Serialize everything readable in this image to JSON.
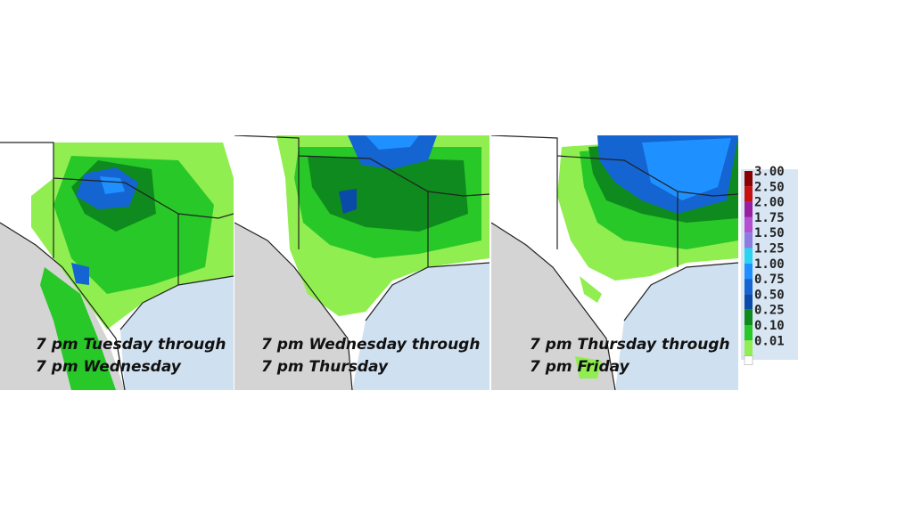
{
  "panels": [
    {
      "caption": [
        "7 pm Tuesday through",
        "7 pm Wednesday"
      ]
    },
    {
      "caption": [
        "7 pm Wednesday through",
        "7 pm Thursday"
      ]
    },
    {
      "caption": [
        "7 pm Thursday through",
        "7 pm Friday"
      ]
    }
  ],
  "legend": {
    "items": [
      {
        "label": "3.00",
        "color": "#8b0000"
      },
      {
        "label": "2.50",
        "color": "#c81010"
      },
      {
        "label": "2.00",
        "color": "#9a1fa0"
      },
      {
        "label": "1.75",
        "color": "#b34fd0"
      },
      {
        "label": "1.50",
        "color": "#8c7ce0"
      },
      {
        "label": "1.25",
        "color": "#2ad4f0"
      },
      {
        "label": "1.00",
        "color": "#1e90ff"
      },
      {
        "label": "0.75",
        "color": "#1464d2"
      },
      {
        "label": "0.50",
        "color": "#0a4aa8"
      },
      {
        "label": "0.25",
        "color": "#0f8a1e"
      },
      {
        "label": "0.10",
        "color": "#28c828"
      },
      {
        "label": "0.01",
        "color": "#90ee50"
      }
    ]
  }
}
